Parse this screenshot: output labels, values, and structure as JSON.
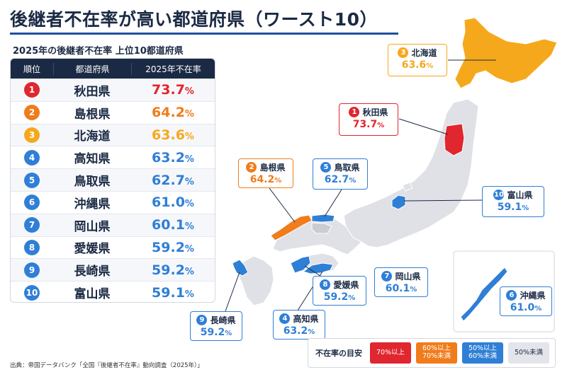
{
  "title": "後継者不在率が高い都道府県（ワースト10）",
  "subtitle": "2025年の後継者不在率 上位10都道府県",
  "table": {
    "headers": {
      "rank": "順位",
      "prefecture": "都道府県",
      "rate": "2025年不在率"
    },
    "rows": [
      {
        "rank": "1",
        "name": "秋田県",
        "value": "73.7",
        "color": "#e0262e"
      },
      {
        "rank": "2",
        "name": "島根県",
        "value": "64.2",
        "color": "#f07c1b"
      },
      {
        "rank": "3",
        "name": "北海道",
        "value": "63.6",
        "color": "#f6a81c"
      },
      {
        "rank": "4",
        "name": "高知県",
        "value": "63.2",
        "color": "#2f7fd6"
      },
      {
        "rank": "5",
        "name": "鳥取県",
        "value": "62.7",
        "color": "#2f7fd6"
      },
      {
        "rank": "6",
        "name": "沖縄県",
        "value": "61.0",
        "color": "#2f7fd6"
      },
      {
        "rank": "7",
        "name": "岡山県",
        "value": "60.1",
        "color": "#2f7fd6"
      },
      {
        "rank": "8",
        "name": "愛媛県",
        "value": "59.2",
        "color": "#2f7fd6"
      },
      {
        "rank": "9",
        "name": "長崎県",
        "value": "59.2",
        "color": "#2f7fd6"
      },
      {
        "rank": "10",
        "name": "富山県",
        "value": "59.1",
        "color": "#2f7fd6"
      }
    ],
    "percent_sign": "%"
  },
  "callouts": [
    {
      "id": "hokkaido",
      "rank": "3",
      "name": "北海道",
      "value": "63.6",
      "color": "#f6a81c"
    },
    {
      "id": "akita",
      "rank": "1",
      "name": "秋田県",
      "value": "73.7",
      "color": "#e0262e"
    },
    {
      "id": "shimane",
      "rank": "2",
      "name": "島根県",
      "value": "64.2",
      "color": "#f07c1b"
    },
    {
      "id": "tottori",
      "rank": "5",
      "name": "鳥取県",
      "value": "62.7",
      "color": "#2f7fd6"
    },
    {
      "id": "toyama",
      "rank": "10",
      "name": "富山県",
      "value": "59.1",
      "color": "#2f7fd6"
    },
    {
      "id": "okayama",
      "rank": "7",
      "name": "岡山県",
      "value": "60.1",
      "color": "#2f7fd6"
    },
    {
      "id": "ehime",
      "rank": "8",
      "name": "愛媛県",
      "value": "59.2",
      "color": "#2f7fd6"
    },
    {
      "id": "kochi",
      "rank": "4",
      "name": "高知県",
      "value": "63.2",
      "color": "#2f7fd6"
    },
    {
      "id": "nagasaki",
      "rank": "9",
      "name": "長崎県",
      "value": "59.2",
      "color": "#2f7fd6"
    },
    {
      "id": "okinawa",
      "rank": "6",
      "name": "沖縄県",
      "value": "61.0",
      "color": "#2f7fd6"
    }
  ],
  "legend": {
    "title": "不在率の目安",
    "items": [
      {
        "label": "70%以上",
        "color": "#e0262e",
        "text_color": "#ffffff"
      },
      {
        "label": "60%以上\n70%未満",
        "color": "#f07c1b",
        "text_color": "#ffffff"
      },
      {
        "label": "50%以上\n60%未満",
        "color": "#2f7fd6",
        "text_color": "#ffffff"
      },
      {
        "label": "50%未満",
        "color": "#e3e5ea",
        "text_color": "#1b2a44"
      }
    ]
  },
  "colors": {
    "base_land": "#dfe1e6",
    "border": "#ffffff",
    "navy": "#1b2a44"
  },
  "source": "出典：帝国データバンク「全国『後継者不在率』動向調査（2025年）」"
}
